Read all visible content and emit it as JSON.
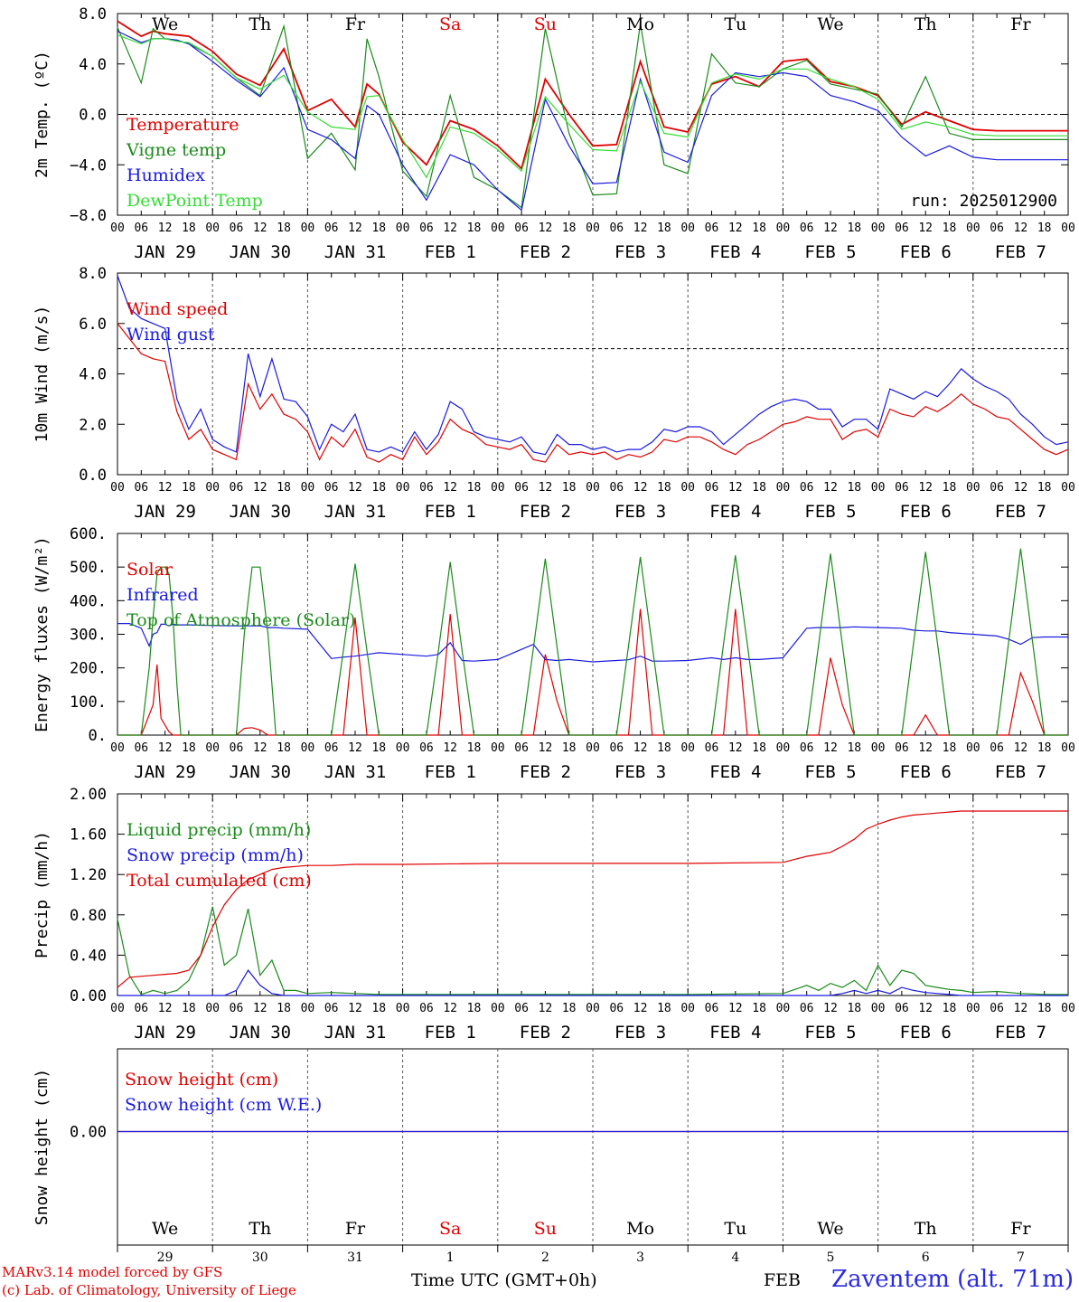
{
  "days": [
    "We",
    "Th",
    "Fr",
    "Sa",
    "Su",
    "Mo",
    "Tu",
    "We",
    "Th",
    "Fr"
  ],
  "day_colors": [
    "#000000",
    "#000000",
    "#000000",
    "#e00000",
    "#e00000",
    "#000000",
    "#000000",
    "#000000",
    "#000000",
    "#000000"
  ],
  "date_labels": [
    "JAN 29",
    "JAN 30",
    "JAN 31",
    "FEB  1",
    "FEB  2",
    "FEB  3",
    "FEB  4",
    "FEB  5",
    "FEB  6",
    "FEB  7"
  ],
  "day_numbers": [
    "29",
    "30",
    "31",
    "1",
    "2",
    "3",
    "4",
    "5",
    "6",
    "7"
  ],
  "hour_ticks": [
    "00",
    "06",
    "12",
    "18"
  ],
  "hour_end": "00",
  "run_label": "run: 2025012900",
  "footer": {
    "model": "MARv3.14 model forced by GFS",
    "copyright": "(c) Lab. of Climatology, University of Liege",
    "xlabel": "Time UTC (GMT+0h)",
    "month": "FEB",
    "station": "Zaventem (alt. 71m)"
  },
  "chart_data": [
    {
      "type": "line",
      "ylabel": "2m Temp. (ºC)",
      "ylim": [
        -8,
        8
      ],
      "yticks": [
        "8.0",
        "4.0",
        "0.0",
        "−4.0",
        "−8.0"
      ],
      "ytick_values": [
        8,
        4,
        0,
        -4,
        -8
      ],
      "reference_line": 0,
      "x_hours": [
        0,
        6,
        9,
        12,
        15,
        18,
        24,
        30,
        36,
        42,
        48,
        54,
        60,
        63,
        66,
        72,
        78,
        84,
        90,
        96,
        102,
        108,
        114,
        120,
        126,
        132,
        138,
        144,
        150,
        156,
        162,
        168,
        174,
        180,
        186,
        192,
        198,
        204,
        210,
        216,
        222,
        228,
        234,
        240
      ],
      "series": [
        {
          "name": "Temperature",
          "color": "#e00000",
          "values": [
            7.4,
            6.2,
            6.6,
            6.4,
            6.3,
            6.2,
            5.0,
            3.2,
            2.3,
            5.2,
            0.3,
            1.2,
            -1.0,
            2.4,
            1.6,
            -2.2,
            -4.0,
            -0.5,
            -1.2,
            -2.5,
            -4.3,
            2.8,
            0.0,
            -2.5,
            -2.4,
            4.2,
            -1.0,
            -1.4,
            2.4,
            3.0,
            2.2,
            4.2,
            4.4,
            2.6,
            2.2,
            1.5,
            -0.8,
            0.2,
            -0.5,
            -1.2,
            -1.3,
            -1.3,
            -1.3,
            -1.3
          ]
        },
        {
          "name": "Vigne temp",
          "color": "#1a8a1a",
          "values": [
            6.9,
            2.5,
            6.8,
            6.0,
            5.9,
            5.6,
            4.6,
            2.9,
            1.5,
            7.0,
            -3.5,
            -1.5,
            -4.4,
            6.0,
            3.0,
            -4.5,
            -6.5,
            1.5,
            -5.0,
            -6.0,
            -7.4,
            6.8,
            -1.5,
            -6.4,
            -6.3,
            7.2,
            -4.0,
            -4.7,
            4.8,
            2.5,
            2.2,
            3.6,
            4.3,
            2.4,
            2.0,
            1.6,
            -1.0,
            3.0,
            -1.5,
            -2.0,
            -2.0,
            -2.0,
            -2.0,
            -2.0
          ]
        },
        {
          "name": "Humidex",
          "color": "#1a1ae0",
          "values": [
            6.6,
            5.7,
            6.0,
            6.0,
            5.9,
            5.6,
            4.2,
            2.7,
            1.4,
            3.7,
            -1.2,
            -2.0,
            -3.5,
            0.7,
            0.0,
            -4.0,
            -6.8,
            -3.2,
            -4.0,
            -6.0,
            -7.6,
            1.2,
            -2.5,
            -5.5,
            -5.4,
            2.8,
            -3.0,
            -3.8,
            1.5,
            3.3,
            3.0,
            3.3,
            3.0,
            1.5,
            1.0,
            0.3,
            -1.8,
            -3.3,
            -2.5,
            -3.4,
            -3.6,
            -3.6,
            -3.6,
            -3.6
          ]
        },
        {
          "name": "DewPoint Temp",
          "color": "#33dd33",
          "values": [
            6.3,
            5.6,
            6.0,
            6.0,
            5.8,
            5.7,
            4.6,
            2.9,
            2.0,
            3.1,
            0.2,
            -1.0,
            -1.2,
            1.4,
            1.5,
            -2.0,
            -5.0,
            -1.0,
            -1.5,
            -2.8,
            -4.5,
            1.4,
            -0.8,
            -2.8,
            -2.9,
            2.6,
            -1.5,
            -1.8,
            2.5,
            3.2,
            2.8,
            3.6,
            3.6,
            2.8,
            2.2,
            1.2,
            -1.2,
            -0.6,
            -1.0,
            -1.6,
            -1.7,
            -1.7,
            -1.7,
            -1.7
          ]
        }
      ]
    },
    {
      "type": "line",
      "ylabel": "10m Wind (m/s)",
      "ylim": [
        0,
        8
      ],
      "yticks": [
        "8.0",
        "6.0",
        "4.0",
        "2.0",
        "0.0"
      ],
      "ytick_values": [
        8,
        6,
        4,
        2,
        0
      ],
      "reference_line": 5,
      "x_hours": [
        0,
        3,
        6,
        9,
        12,
        15,
        18,
        21,
        24,
        27,
        30,
        33,
        36,
        39,
        42,
        45,
        48,
        51,
        54,
        57,
        60,
        63,
        66,
        69,
        72,
        75,
        78,
        81,
        84,
        87,
        90,
        93,
        96,
        99,
        102,
        105,
        108,
        111,
        114,
        117,
        120,
        123,
        126,
        129,
        132,
        135,
        138,
        141,
        144,
        147,
        150,
        153,
        156,
        159,
        162,
        165,
        168,
        171,
        174,
        177,
        180,
        183,
        186,
        189,
        192,
        195,
        198,
        201,
        204,
        207,
        210,
        213,
        216,
        219,
        222,
        225,
        228,
        231,
        234,
        237,
        240
      ],
      "series": [
        {
          "name": "Wind speed",
          "color": "#e00000",
          "values": [
            6.0,
            5.4,
            4.8,
            4.6,
            4.5,
            2.5,
            1.4,
            1.8,
            1.0,
            0.8,
            0.6,
            3.6,
            2.6,
            3.2,
            2.4,
            2.2,
            1.7,
            0.6,
            1.5,
            1.1,
            1.8,
            0.7,
            0.5,
            0.8,
            0.6,
            1.5,
            0.8,
            1.3,
            2.2,
            1.8,
            1.6,
            1.2,
            1.1,
            1.0,
            1.2,
            0.6,
            0.5,
            1.2,
            0.8,
            0.9,
            0.8,
            0.9,
            0.6,
            0.8,
            0.7,
            0.9,
            1.4,
            1.3,
            1.5,
            1.5,
            1.3,
            1.0,
            0.8,
            1.2,
            1.4,
            1.7,
            2.0,
            2.1,
            2.3,
            2.2,
            2.2,
            1.4,
            1.7,
            1.8,
            1.5,
            2.6,
            2.4,
            2.3,
            2.7,
            2.5,
            2.8,
            3.2,
            2.8,
            2.6,
            2.3,
            2.2,
            1.8,
            1.4,
            1.0,
            0.8,
            1.0
          ]
        },
        {
          "name": "Wind gust",
          "color": "#1a1ae0",
          "values": [
            7.9,
            6.6,
            6.2,
            6.0,
            5.8,
            3.0,
            1.8,
            2.6,
            1.4,
            1.1,
            0.9,
            4.8,
            3.1,
            4.6,
            3.0,
            2.9,
            2.3,
            1.0,
            2.0,
            1.7,
            2.4,
            1.0,
            0.9,
            1.1,
            0.9,
            1.7,
            1.0,
            1.6,
            2.9,
            2.6,
            1.7,
            1.5,
            1.4,
            1.3,
            1.5,
            0.9,
            0.8,
            1.6,
            1.2,
            1.2,
            1.0,
            1.1,
            0.9,
            1.0,
            1.0,
            1.3,
            1.8,
            1.7,
            1.9,
            1.9,
            1.7,
            1.2,
            1.6,
            2.0,
            2.4,
            2.7,
            2.9,
            3.0,
            2.9,
            2.6,
            2.6,
            1.9,
            2.2,
            2.2,
            1.8,
            3.4,
            3.2,
            3.0,
            3.3,
            3.1,
            3.6,
            4.2,
            3.8,
            3.5,
            3.3,
            3.0,
            2.4,
            2.0,
            1.5,
            1.2,
            1.3
          ]
        }
      ]
    },
    {
      "type": "line",
      "ylabel": "Energy fluxes (W/m²)",
      "ylim": [
        0,
        600
      ],
      "yticks": [
        "600.",
        "500.",
        "400.",
        "300.",
        "200.",
        "100.",
        "0."
      ],
      "ytick_values": [
        600,
        500,
        400,
        300,
        200,
        100,
        0
      ],
      "x_hours": [
        0,
        3,
        6,
        8,
        9,
        10,
        11,
        12,
        13,
        14,
        15,
        16,
        18,
        24,
        30,
        32,
        34,
        36,
        38,
        40,
        42,
        48,
        54,
        57,
        60,
        63,
        66,
        72,
        78,
        81,
        84,
        87,
        90,
        96,
        102,
        105,
        108,
        111,
        114,
        120,
        126,
        129,
        132,
        135,
        138,
        144,
        150,
        153,
        156,
        159,
        162,
        168,
        174,
        177,
        180,
        183,
        186,
        192,
        198,
        201,
        204,
        207,
        210,
        216,
        222,
        225,
        228,
        231,
        234,
        240
      ],
      "series": [
        {
          "name": "Solar",
          "color": "#e00000",
          "values": [
            0,
            0,
            0,
            60,
            90,
            210,
            50,
            30,
            10,
            0,
            0,
            0,
            0,
            0,
            0,
            20,
            22,
            15,
            0,
            0,
            0,
            0,
            0,
            0,
            350,
            0,
            0,
            0,
            0,
            0,
            360,
            0,
            0,
            0,
            0,
            0,
            240,
            100,
            0,
            0,
            0,
            0,
            375,
            0,
            0,
            0,
            0,
            0,
            375,
            0,
            0,
            0,
            0,
            0,
            230,
            90,
            0,
            0,
            0,
            0,
            60,
            0,
            0,
            0,
            0,
            0,
            185,
            100,
            0,
            0
          ]
        },
        {
          "name": "Infrared",
          "color": "#1a1ae0",
          "values": [
            332,
            332,
            318,
            265,
            300,
            305,
            330,
            330,
            325,
            330,
            328,
            328,
            328,
            326,
            325,
            325,
            325,
            325,
            320,
            320,
            318,
            315,
            228,
            232,
            235,
            240,
            245,
            240,
            235,
            240,
            275,
            222,
            220,
            225,
            255,
            270,
            225,
            222,
            225,
            218,
            222,
            224,
            235,
            220,
            220,
            222,
            230,
            225,
            230,
            225,
            225,
            230,
            318,
            320,
            320,
            320,
            322,
            320,
            318,
            312,
            310,
            310,
            305,
            300,
            295,
            285,
            270,
            290,
            292,
            292
          ]
        },
        {
          "name": "Top of Atmosphere (Solar)",
          "color": "#1a8a1a",
          "values": [
            0,
            0,
            0,
            200,
            350,
            480,
            500,
            500,
            480,
            350,
            150,
            0,
            0,
            0,
            0,
            300,
            500,
            500,
            300,
            0,
            0,
            0,
            0,
            250,
            510,
            250,
            0,
            0,
            0,
            250,
            515,
            250,
            0,
            0,
            0,
            260,
            525,
            260,
            0,
            0,
            0,
            265,
            530,
            265,
            0,
            0,
            0,
            270,
            535,
            270,
            0,
            0,
            0,
            270,
            540,
            270,
            0,
            0,
            0,
            275,
            545,
            275,
            0,
            0,
            0,
            280,
            555,
            280,
            0,
            0
          ]
        }
      ]
    },
    {
      "type": "line",
      "ylabel": "Precip (mm/h)",
      "ylim": [
        0,
        2
      ],
      "yticks": [
        "2.00",
        "1.60",
        "1.20",
        "0.80",
        "0.40",
        "0.00"
      ],
      "ytick_values": [
        2,
        1.6,
        1.2,
        0.8,
        0.4,
        0
      ],
      "x_hours": [
        0,
        3,
        6,
        9,
        12,
        15,
        18,
        21,
        24,
        27,
        30,
        33,
        36,
        39,
        42,
        45,
        48,
        54,
        60,
        66,
        72,
        96,
        120,
        144,
        168,
        174,
        177,
        180,
        183,
        186,
        189,
        192,
        195,
        198,
        201,
        204,
        207,
        210,
        213,
        216,
        222,
        228,
        234,
        240
      ],
      "series": [
        {
          "name": "Liquid precip (mm/h)",
          "color": "#1a8a1a",
          "values": [
            0.76,
            0.2,
            0.01,
            0.05,
            0.02,
            0.05,
            0.15,
            0.4,
            0.88,
            0.3,
            0.4,
            0.86,
            0.2,
            0.35,
            0.05,
            0.05,
            0.02,
            0.03,
            0.02,
            0.01,
            0.01,
            0.01,
            0.01,
            0.01,
            0.02,
            0.1,
            0.05,
            0.12,
            0.08,
            0.15,
            0.05,
            0.3,
            0.1,
            0.25,
            0.22,
            0.1,
            0.08,
            0.06,
            0.05,
            0.03,
            0.04,
            0.02,
            0.01,
            0.01
          ]
        },
        {
          "name": "Snow precip (mm/h)",
          "color": "#1a1ae0",
          "values": [
            0,
            0,
            0,
            0,
            0,
            0,
            0,
            0,
            0,
            0,
            0.05,
            0.25,
            0.1,
            0.02,
            0,
            0,
            0,
            0,
            0,
            0,
            0,
            0,
            0,
            0,
            0,
            0,
            0,
            0,
            0.02,
            0.05,
            0.02,
            0.05,
            0.02,
            0.08,
            0.05,
            0.03,
            0.02,
            0.01,
            0,
            0,
            0,
            0,
            0,
            0
          ]
        },
        {
          "name": "Total cumulated (cm)",
          "color": "#e00000",
          "values": [
            0.08,
            0.18,
            0.19,
            0.2,
            0.21,
            0.22,
            0.25,
            0.4,
            0.68,
            0.9,
            1.05,
            1.15,
            1.2,
            1.25,
            1.27,
            1.28,
            1.29,
            1.29,
            1.3,
            1.3,
            1.3,
            1.31,
            1.31,
            1.31,
            1.32,
            1.38,
            1.4,
            1.42,
            1.48,
            1.55,
            1.65,
            1.7,
            1.74,
            1.77,
            1.79,
            1.8,
            1.81,
            1.82,
            1.83,
            1.83,
            1.83,
            1.83,
            1.83,
            1.83
          ]
        }
      ]
    },
    {
      "type": "line",
      "ylabel": "Snow height (cm)",
      "yticks": [
        "0.00"
      ],
      "ytick_values": [
        0
      ],
      "x_hours": [
        0,
        240
      ],
      "series": [
        {
          "name": "Snow height (cm)",
          "color": "#e00000",
          "values": [
            0,
            0
          ]
        },
        {
          "name": "Snow height (cm W.E.)",
          "color": "#1a1ae0",
          "values": [
            0,
            0
          ]
        }
      ]
    }
  ]
}
